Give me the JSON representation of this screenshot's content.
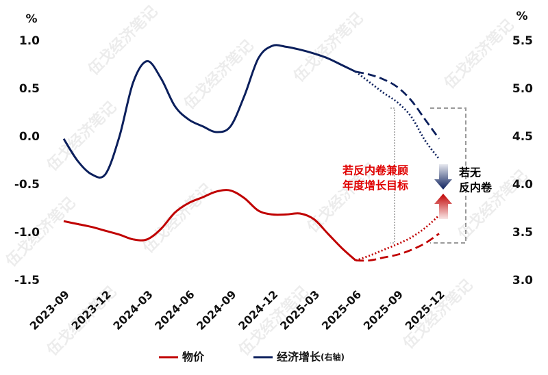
{
  "chart_data": {
    "type": "line",
    "y_unit": "%",
    "y2_unit": "%",
    "watermark": "伍戈经济笔记",
    "categories": [
      "2023-09",
      null,
      null,
      "2023-12",
      null,
      null,
      "2024-03",
      null,
      null,
      "2024-06",
      null,
      null,
      "2024-09",
      null,
      null,
      "2024-12",
      null,
      null,
      "2025-03",
      null,
      null,
      "2025-06",
      null,
      null,
      "2025-09",
      null,
      null,
      "2025-12"
    ],
    "ylim": [
      -1.5,
      1.0
    ],
    "yticks": [
      {
        "value": 1.0,
        "label": "1.0"
      },
      0.5,
      {
        "value": 0.0,
        "label": "0.0"
      },
      -0.5,
      {
        "value": -1.0,
        "label": "-1.0"
      },
      -1.5
    ],
    "y2lim": [
      3.0,
      5.5
    ],
    "y2ticks": [
      5.5,
      {
        "value": 5.0,
        "label": "5.0"
      },
      4.5,
      {
        "value": 4.0,
        "label": "4.0"
      },
      3.5,
      {
        "value": 3.0,
        "label": "3.0"
      }
    ],
    "series": [
      {
        "name": "物价",
        "color": "#c00000",
        "style": "solid",
        "values": [
          -0.88,
          -0.91,
          -0.94,
          -0.98,
          -1.02,
          -1.07,
          -1.07,
          -0.96,
          -0.79,
          -0.69,
          -0.63,
          -0.57,
          -0.56,
          -0.64,
          -0.77,
          -0.81,
          -0.81,
          -0.8,
          -0.86,
          -1.01,
          -1.16,
          -1.29,
          null,
          null,
          null,
          null,
          null,
          null
        ]
      },
      {
        "name": "经济增长",
        "name_note": "(右轴)",
        "color": "#0b1f5c",
        "style": "solid",
        "axis": "y2",
        "values": [
          4.48,
          4.25,
          4.11,
          4.11,
          4.5,
          5.07,
          5.29,
          5.11,
          4.82,
          4.68,
          4.61,
          4.55,
          4.61,
          4.93,
          5.32,
          5.45,
          5.44,
          5.41,
          5.37,
          5.32,
          5.25,
          5.18,
          null,
          null,
          null,
          null,
          null,
          null
        ]
      },
      {
        "color": "#c00000",
        "style": "dashed",
        "values": [
          null,
          null,
          null,
          null,
          null,
          null,
          null,
          null,
          null,
          null,
          null,
          null,
          null,
          null,
          null,
          null,
          null,
          null,
          null,
          null,
          null,
          -1.29,
          -1.29,
          -1.26,
          -1.23,
          -1.18,
          -1.11,
          -1.01
        ]
      },
      {
        "color": "#c00000",
        "style": "dotted",
        "values": [
          null,
          null,
          null,
          null,
          null,
          null,
          null,
          null,
          null,
          null,
          null,
          null,
          null,
          null,
          null,
          null,
          null,
          null,
          null,
          null,
          null,
          -1.29,
          -1.24,
          -1.18,
          -1.12,
          -1.05,
          -0.95,
          -0.82
        ]
      },
      {
        "color": "#0b1f5c",
        "style": "dashed",
        "axis": "y2",
        "values": [
          null,
          null,
          null,
          null,
          null,
          null,
          null,
          null,
          null,
          null,
          null,
          null,
          null,
          null,
          null,
          null,
          null,
          null,
          null,
          null,
          null,
          5.18,
          5.15,
          5.1,
          5.02,
          4.88,
          4.68,
          4.48
        ]
      },
      {
        "color": "#0b1f5c",
        "style": "dotted",
        "axis": "y2",
        "values": [
          null,
          null,
          null,
          null,
          null,
          null,
          null,
          null,
          null,
          null,
          null,
          null,
          null,
          null,
          null,
          null,
          null,
          null,
          null,
          null,
          null,
          5.18,
          5.07,
          4.96,
          4.86,
          4.71,
          4.46,
          4.27
        ]
      }
    ],
    "annotations": [
      {
        "text": [
          "若反内卷兼顾",
          "年度增长目标"
        ],
        "color": "#e00000"
      },
      {
        "text": [
          "若无",
          "反内卷"
        ],
        "color": "#000000"
      }
    ]
  }
}
